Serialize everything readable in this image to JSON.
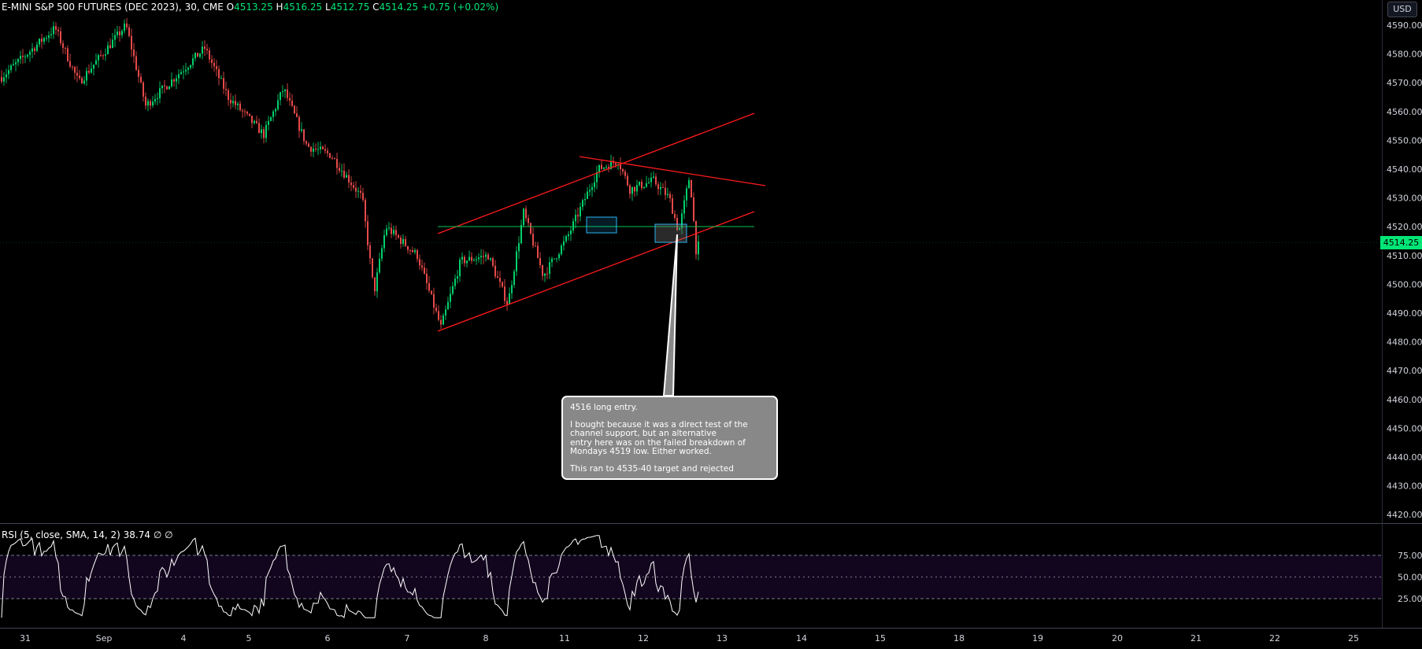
{
  "header": {
    "symbol": "E-MINI S&P 500 FUTURES (DEC 2023), 30, CME",
    "open_label": "O",
    "open": "4513.25",
    "high_label": "H",
    "high": "4516.25",
    "low_label": "L",
    "low": "4512.75",
    "close_label": "C",
    "close": "4514.25",
    "change": "+0.75 (+0.02%)"
  },
  "currency_button": "USD",
  "last_price_label": "4514.25",
  "rsi": {
    "legend": "RSI (5, close, SMA, 14, 2)",
    "value": "38.74",
    "extra1": "∅",
    "extra2": "∅",
    "levels": [
      "75.00",
      "50.00",
      "25.00"
    ]
  },
  "callout": {
    "line1": "4516 long entry.",
    "line2": "I bought because it was a direct test of the channel support, but an alternative",
    "line3": "entry here was on the failed breakdown of Mondays 4519 low. Either worked.",
    "line4": "This ran to 4535-40 target and rejected"
  },
  "colors": {
    "background": "#000000",
    "up": "#00e676",
    "down": "#ff5252",
    "trendline": "#ff1a1a",
    "support": "#00c853",
    "box": "#29b6f6",
    "rsi_line": "#ffffff",
    "rsi_band": "#1a0a2e"
  },
  "chart_data": [
    {
      "type": "candlestick",
      "y_axis_ticks": [
        "4590.00",
        "4580.00",
        "4570.00",
        "4560.00",
        "4550.00",
        "4540.00",
        "4530.00",
        "4520.00",
        "4510.00",
        "4500.00",
        "4490.00",
        "4480.00",
        "4470.00",
        "4460.00",
        "4450.00",
        "4440.00",
        "4430.00",
        "4420.00"
      ],
      "ylim": [
        4415,
        4593
      ],
      "x_axis_ticks": [
        "31",
        "Sep",
        "4",
        "5",
        "6",
        "7",
        "8",
        "11",
        "12",
        "13",
        "14",
        "15",
        "18",
        "19",
        "20",
        "21",
        "22",
        "25"
      ],
      "anchors": [
        {
          "x": "31",
          "price": 4578
        },
        {
          "x": "Sep",
          "price": 4582
        },
        {
          "x": "4",
          "price": 4578
        },
        {
          "x": "5",
          "price": 4563
        },
        {
          "x": "6",
          "price": 4545
        },
        {
          "x": "7",
          "price": 4512
        },
        {
          "x": "8",
          "price": 4508
        },
        {
          "x": "11",
          "price": 4530
        },
        {
          "x": "12",
          "price": 4528
        },
        {
          "x": "12",
          "price": 4514.25
        }
      ],
      "annotations": [
        {
          "type": "trendline",
          "from": [
            "7",
            4483
          ],
          "to": [
            "13",
            4525
          ]
        },
        {
          "type": "trendline",
          "from": [
            "7",
            4517
          ],
          "to": [
            "13",
            4559
          ]
        },
        {
          "type": "trendline",
          "from": [
            "11",
            4545
          ],
          "to": [
            "14",
            4534
          ]
        },
        {
          "type": "horizontal_line",
          "price": 4520
        },
        {
          "type": "box",
          "from": [
            "11",
            4518
          ],
          "to": [
            "11",
            4523
          ]
        },
        {
          "type": "box",
          "from": [
            "12",
            4516
          ],
          "to": [
            "12",
            4521
          ]
        }
      ]
    },
    {
      "type": "line",
      "name": "RSI",
      "ylim": [
        0,
        100
      ],
      "levels": [
        75,
        50,
        25
      ],
      "last_value": 38.74
    }
  ]
}
